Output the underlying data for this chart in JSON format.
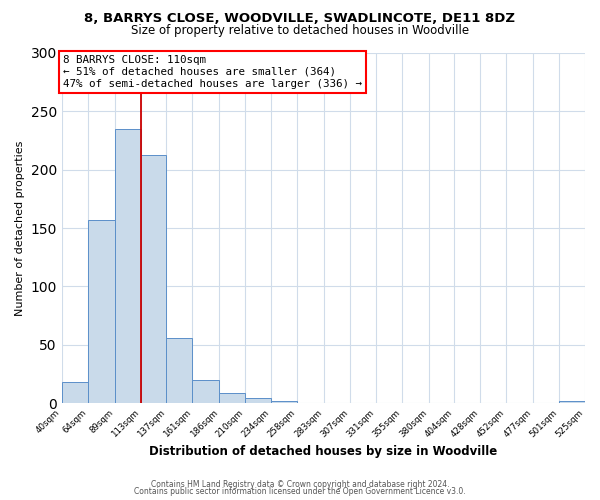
{
  "title": "8, BARRYS CLOSE, WOODVILLE, SWADLINCOTE, DE11 8DZ",
  "subtitle": "Size of property relative to detached houses in Woodville",
  "xlabel": "Distribution of detached houses by size in Woodville",
  "ylabel": "Number of detached properties",
  "bin_edges": [
    40,
    64,
    89,
    113,
    137,
    161,
    186,
    210,
    234,
    258,
    283,
    307,
    331,
    355,
    380,
    404,
    428,
    452,
    477,
    501,
    525
  ],
  "bar_heights": [
    18,
    157,
    235,
    213,
    56,
    20,
    9,
    4,
    2,
    0,
    0,
    0,
    0,
    0,
    0,
    0,
    0,
    0,
    0,
    2
  ],
  "bar_color": "#c9daea",
  "bar_edge_color": "#5b8fc9",
  "tick_labels": [
    "40sqm",
    "64sqm",
    "89sqm",
    "113sqm",
    "137sqm",
    "161sqm",
    "186sqm",
    "210sqm",
    "234sqm",
    "258sqm",
    "283sqm",
    "307sqm",
    "331sqm",
    "355sqm",
    "380sqm",
    "404sqm",
    "428sqm",
    "452sqm",
    "477sqm",
    "501sqm",
    "525sqm"
  ],
  "ylim": [
    0,
    300
  ],
  "yticks": [
    0,
    50,
    100,
    150,
    200,
    250,
    300
  ],
  "vline_x": 113,
  "vline_color": "#cc0000",
  "annotation_title": "8 BARRYS CLOSE: 110sqm",
  "annotation_line1": "← 51% of detached houses are smaller (364)",
  "annotation_line2": "47% of semi-detached houses are larger (336) →",
  "footer_line1": "Contains HM Land Registry data © Crown copyright and database right 2024.",
  "footer_line2": "Contains public sector information licensed under the Open Government Licence v3.0.",
  "bg_color": "#ffffff",
  "grid_color": "#d0dcea"
}
